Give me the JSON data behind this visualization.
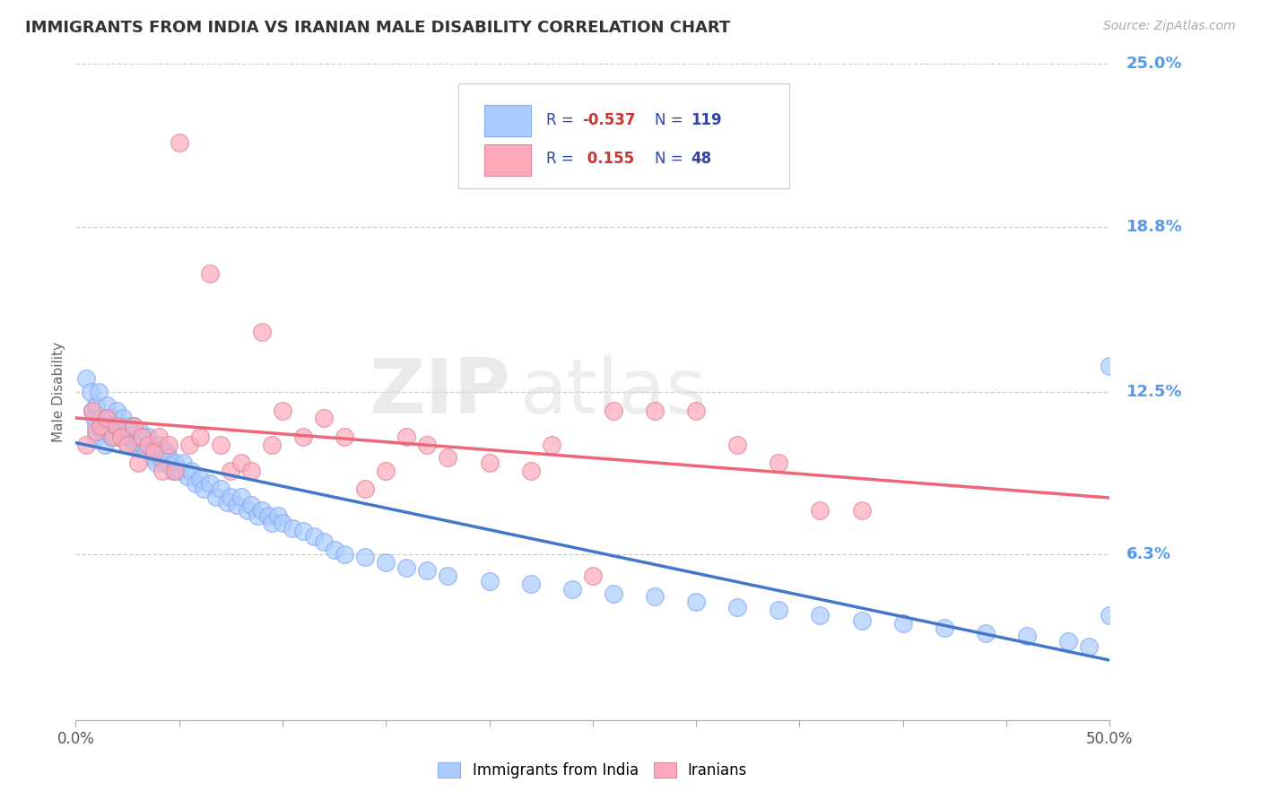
{
  "title": "IMMIGRANTS FROM INDIA VS IRANIAN MALE DISABILITY CORRELATION CHART",
  "source_text": "Source: ZipAtlas.com",
  "ylabel": "Male Disability",
  "xlim": [
    0.0,
    0.5
  ],
  "ylim": [
    0.0,
    0.25
  ],
  "xtick_vals": [
    0.0,
    0.05,
    0.1,
    0.15,
    0.2,
    0.25,
    0.3,
    0.35,
    0.4,
    0.45,
    0.5
  ],
  "xtick_labels_show": {
    "0.0": "0.0%",
    "0.5": "50.0%"
  },
  "ytick_labels_right": [
    "25.0%",
    "18.8%",
    "12.5%",
    "6.3%"
  ],
  "ytick_vals_right": [
    0.25,
    0.188,
    0.125,
    0.063
  ],
  "blue_color": "#aaccff",
  "pink_color": "#ffaabb",
  "trend_blue_color": "#4477cc",
  "trend_pink_color": "#ee6677",
  "legend_r_color": "#cc3333",
  "legend_n_color": "#3344aa",
  "legend_label_blue": "Immigrants from India",
  "legend_label_pink": "Iranians",
  "watermark_zip": "ZIP",
  "watermark_atlas": "atlas",
  "background_color": "#ffffff",
  "grid_color": "#cccccc",
  "title_color": "#333333",
  "axis_label_color": "#5599ee",
  "blue_scatter_x": [
    0.005,
    0.007,
    0.008,
    0.009,
    0.01,
    0.01,
    0.01,
    0.011,
    0.012,
    0.013,
    0.014,
    0.015,
    0.015,
    0.016,
    0.017,
    0.018,
    0.019,
    0.02,
    0.02,
    0.021,
    0.022,
    0.023,
    0.024,
    0.025,
    0.025,
    0.026,
    0.027,
    0.028,
    0.029,
    0.03,
    0.03,
    0.031,
    0.032,
    0.033,
    0.034,
    0.035,
    0.036,
    0.037,
    0.038,
    0.039,
    0.04,
    0.041,
    0.042,
    0.043,
    0.044,
    0.045,
    0.046,
    0.047,
    0.048,
    0.05,
    0.052,
    0.054,
    0.056,
    0.058,
    0.06,
    0.062,
    0.065,
    0.068,
    0.07,
    0.073,
    0.075,
    0.078,
    0.08,
    0.083,
    0.085,
    0.088,
    0.09,
    0.093,
    0.095,
    0.098,
    0.1,
    0.105,
    0.11,
    0.115,
    0.12,
    0.125,
    0.13,
    0.14,
    0.15,
    0.16,
    0.17,
    0.18,
    0.2,
    0.22,
    0.24,
    0.26,
    0.28,
    0.3,
    0.32,
    0.34,
    0.36,
    0.38,
    0.4,
    0.42,
    0.44,
    0.46,
    0.48,
    0.49,
    0.5,
    0.5
  ],
  "blue_scatter_y": [
    0.13,
    0.125,
    0.118,
    0.115,
    0.12,
    0.112,
    0.108,
    0.125,
    0.115,
    0.11,
    0.105,
    0.12,
    0.115,
    0.11,
    0.108,
    0.115,
    0.112,
    0.118,
    0.108,
    0.112,
    0.11,
    0.115,
    0.108,
    0.112,
    0.105,
    0.11,
    0.108,
    0.112,
    0.105,
    0.108,
    0.105,
    0.11,
    0.105,
    0.108,
    0.103,
    0.108,
    0.105,
    0.1,
    0.103,
    0.098,
    0.105,
    0.1,
    0.103,
    0.098,
    0.102,
    0.1,
    0.097,
    0.095,
    0.098,
    0.095,
    0.098,
    0.093,
    0.095,
    0.09,
    0.092,
    0.088,
    0.09,
    0.085,
    0.088,
    0.083,
    0.085,
    0.082,
    0.085,
    0.08,
    0.082,
    0.078,
    0.08,
    0.078,
    0.075,
    0.078,
    0.075,
    0.073,
    0.072,
    0.07,
    0.068,
    0.065,
    0.063,
    0.062,
    0.06,
    0.058,
    0.057,
    0.055,
    0.053,
    0.052,
    0.05,
    0.048,
    0.047,
    0.045,
    0.043,
    0.042,
    0.04,
    0.038,
    0.037,
    0.035,
    0.033,
    0.032,
    0.03,
    0.028,
    0.04,
    0.135
  ],
  "pink_scatter_x": [
    0.005,
    0.008,
    0.01,
    0.012,
    0.015,
    0.018,
    0.02,
    0.022,
    0.025,
    0.028,
    0.03,
    0.032,
    0.035,
    0.038,
    0.04,
    0.042,
    0.045,
    0.048,
    0.05,
    0.055,
    0.06,
    0.065,
    0.07,
    0.075,
    0.08,
    0.085,
    0.09,
    0.095,
    0.1,
    0.11,
    0.12,
    0.13,
    0.15,
    0.17,
    0.2,
    0.23,
    0.26,
    0.3,
    0.34,
    0.38,
    0.22,
    0.25,
    0.28,
    0.18,
    0.16,
    0.14,
    0.32,
    0.36
  ],
  "pink_scatter_y": [
    0.105,
    0.118,
    0.11,
    0.112,
    0.115,
    0.108,
    0.112,
    0.108,
    0.105,
    0.112,
    0.098,
    0.108,
    0.105,
    0.102,
    0.108,
    0.095,
    0.105,
    0.095,
    0.22,
    0.105,
    0.108,
    0.17,
    0.105,
    0.095,
    0.098,
    0.095,
    0.148,
    0.105,
    0.118,
    0.108,
    0.115,
    0.108,
    0.095,
    0.105,
    0.098,
    0.105,
    0.118,
    0.118,
    0.098,
    0.08,
    0.095,
    0.055,
    0.118,
    0.1,
    0.108,
    0.088,
    0.105,
    0.08
  ]
}
